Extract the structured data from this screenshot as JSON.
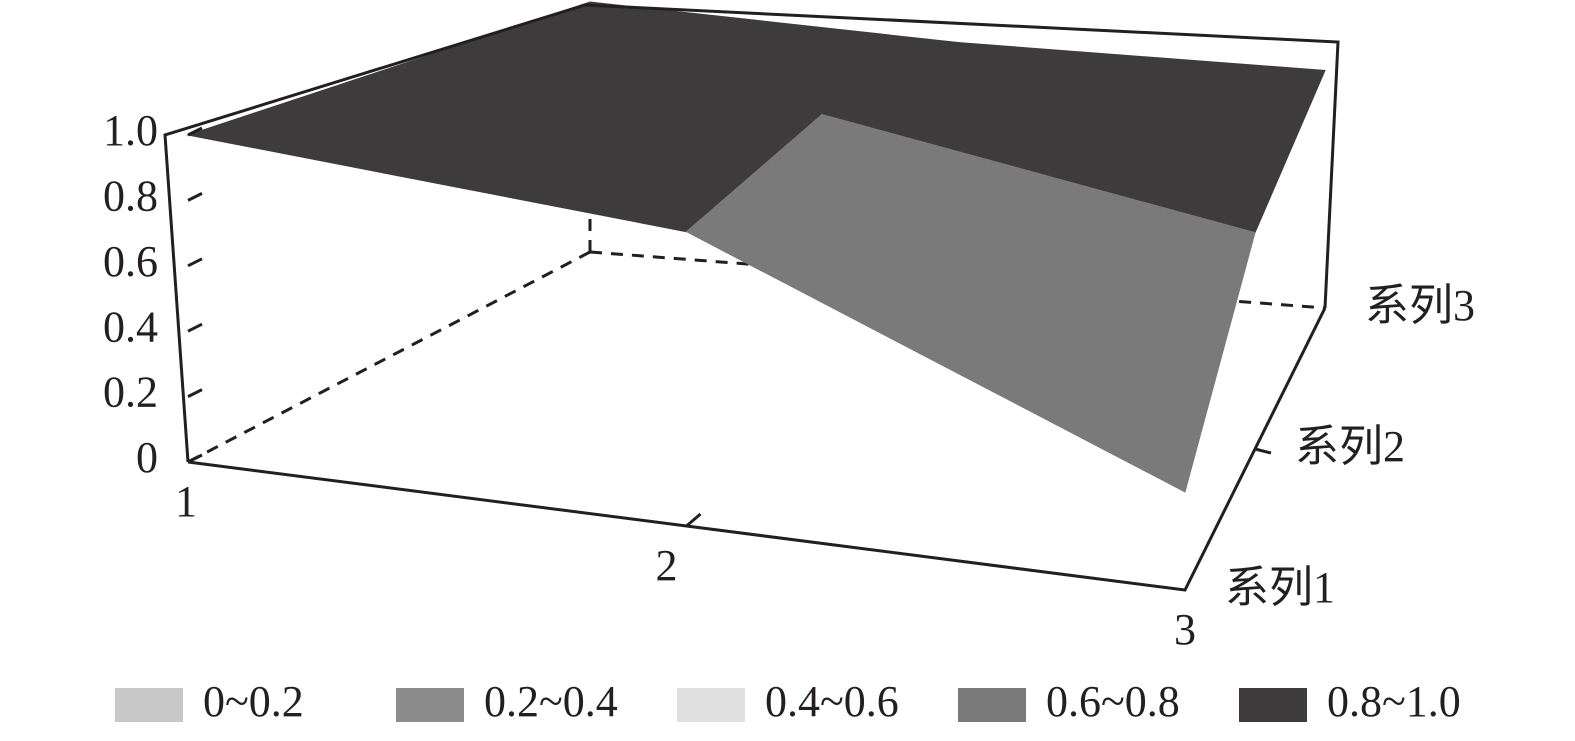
{
  "chart_data": {
    "type": "surface",
    "categories": [
      "1",
      "2",
      "3"
    ],
    "series": [
      {
        "name": "系列1",
        "values": [
          1.0,
          0.9,
          0.3
        ]
      },
      {
        "name": "系列2",
        "values": [
          1.0,
          1.0,
          0.75
        ]
      },
      {
        "name": "系列3",
        "values": [
          1.0,
          0.95,
          0.95
        ]
      }
    ],
    "zlim": [
      0,
      1
    ],
    "zticks": [
      0,
      0.2,
      0.4,
      0.6,
      0.8,
      {
        "value": 1,
        "label": "1.0"
      }
    ],
    "bands": [
      {
        "label": "0~0.2",
        "color": "#c8c8c8"
      },
      {
        "label": "0.2~0.4",
        "color": "#8c8c8c"
      },
      {
        "label": "0.4~0.6",
        "color": "#e0e0e0"
      },
      {
        "label": "0.6~0.8",
        "color": "#7a7a7a"
      },
      {
        "label": "0.8~1.0",
        "color": "#3e3b3c"
      }
    ]
  }
}
